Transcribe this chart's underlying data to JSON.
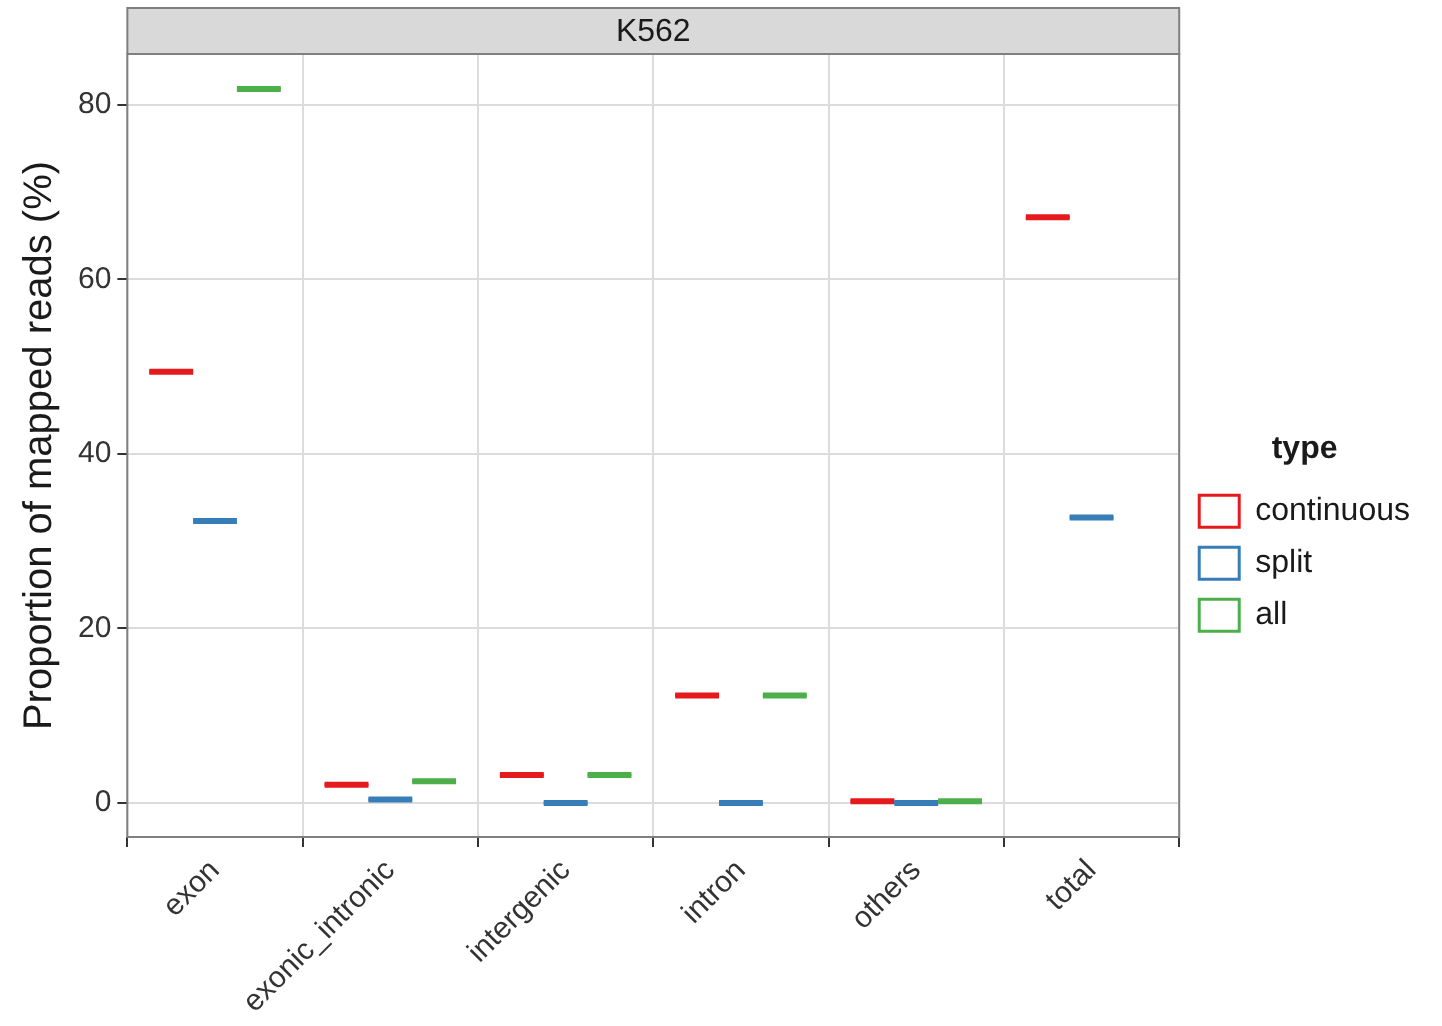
{
  "chart_data": {
    "type": "box",
    "title": "K562",
    "ylabel": "Proportion of mapped reads (%)",
    "legend_title": "type",
    "legend": "right",
    "grid": true,
    "categories": [
      "exon",
      "exonic_intronic",
      "intergenic",
      "intron",
      "others",
      "total"
    ],
    "ylim": [
      -3.9,
      85.8
    ],
    "yticks": [
      0,
      20,
      40,
      60,
      80
    ],
    "series": [
      {
        "name": "continuous",
        "color": "#e41a1c",
        "boxes": [
          {
            "low": 49.4,
            "q1": 49.4,
            "median": 49.4,
            "q3": 49.4,
            "high": 49.4
          },
          {
            "low": 2.1,
            "q1": 2.1,
            "median": 2.1,
            "q3": 2.1,
            "high": 2.1
          },
          {
            "low": 3.2,
            "q1": 3.2,
            "median": 3.2,
            "q3": 3.2,
            "high": 3.2
          },
          {
            "low": 12.3,
            "q1": 12.3,
            "median": 12.3,
            "q3": 12.3,
            "high": 12.3
          },
          {
            "low": 0.2,
            "q1": 0.2,
            "median": 0.2,
            "q3": 0.2,
            "high": 0.2
          },
          {
            "low": 67.1,
            "q1": 67.1,
            "median": 67.1,
            "q3": 67.1,
            "high": 67.1
          }
        ]
      },
      {
        "name": "split",
        "color": "#377eb8",
        "boxes": [
          {
            "low": 32.3,
            "q1": 32.3,
            "median": 32.3,
            "q3": 32.3,
            "high": 32.3
          },
          {
            "low": 0.4,
            "q1": 0.4,
            "median": 0.4,
            "q3": 0.4,
            "high": 0.4
          },
          {
            "low": 0,
            "q1": 0,
            "median": 0,
            "q3": 0,
            "high": 0
          },
          {
            "low": 0,
            "q1": 0,
            "median": 0,
            "q3": 0,
            "high": 0
          },
          {
            "low": 0,
            "q1": 0,
            "median": 0,
            "q3": 0,
            "high": 0
          },
          {
            "low": 32.7,
            "q1": 32.7,
            "median": 32.7,
            "q3": 32.7,
            "high": 32.7
          }
        ]
      },
      {
        "name": "all",
        "color": "#4daf4a",
        "boxes": [
          {
            "low": 81.8,
            "q1": 81.8,
            "median": 81.8,
            "q3": 81.8,
            "high": 81.8
          },
          {
            "low": 2.5,
            "q1": 2.5,
            "median": 2.5,
            "q3": 2.5,
            "high": 2.5
          },
          {
            "low": 3.2,
            "q1": 3.2,
            "median": 3.2,
            "q3": 3.2,
            "high": 3.2
          },
          {
            "low": 12.3,
            "q1": 12.3,
            "median": 12.3,
            "q3": 12.3,
            "high": 12.3
          },
          {
            "low": 0.2,
            "q1": 0.2,
            "median": 0.2,
            "q3": 0.2,
            "high": 0.2
          },
          null
        ]
      }
    ]
  }
}
